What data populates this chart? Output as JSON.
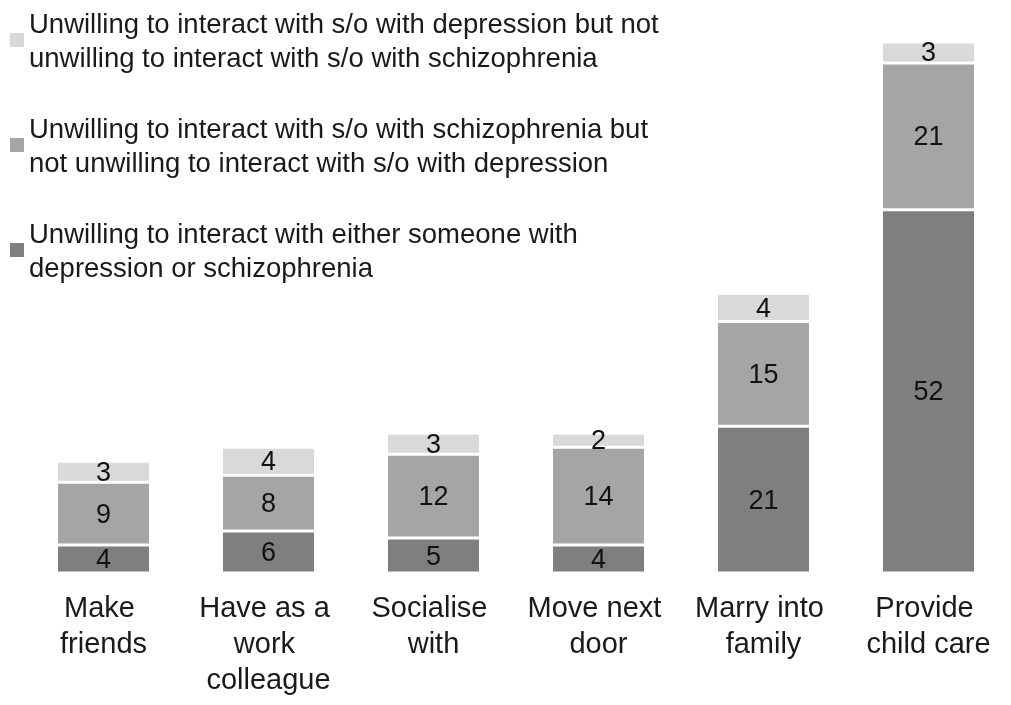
{
  "chart_data": {
    "type": "bar",
    "stacked": true,
    "categories": [
      "Make friends",
      "Have as a work colleague",
      "Socialise with",
      "Move next door",
      "Marry into family",
      "Provide child care"
    ],
    "series": [
      {
        "name": "Unwilling to interact with either someone with depression or schizophrenia",
        "color": "#7f7f7f",
        "values": [
          4,
          6,
          5,
          4,
          21,
          52
        ]
      },
      {
        "name": "Unwilling to interact with s/o with schizophrenia but not unwilling to interact with s/o with depression",
        "color": "#a5a5a5",
        "values": [
          9,
          8,
          12,
          14,
          15,
          21
        ]
      },
      {
        "name": "Unwilling to interact with s/o with depression but not unwilling to interact with s/o with schizophrenia",
        "color": "#d9d9d9",
        "values": [
          3,
          4,
          3,
          2,
          4,
          3
        ]
      }
    ],
    "data_labels": true,
    "legend": "top left",
    "grid": false,
    "tick_labels": "x"
  }
}
